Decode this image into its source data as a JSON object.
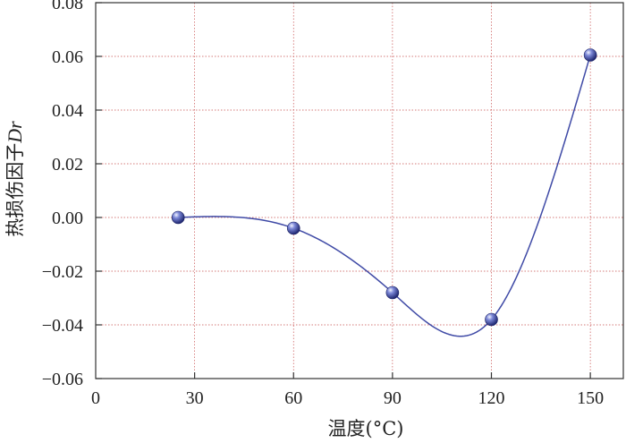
{
  "chart_data": {
    "type": "line",
    "title": "",
    "xlabel": "温度(°C)",
    "ylabel_prefix": "热损伤因子",
    "ylabel_symbol": "Dr",
    "xlim": [
      0,
      160
    ],
    "ylim": [
      -0.06,
      0.08
    ],
    "x_ticks": [
      0,
      30,
      60,
      90,
      120,
      150
    ],
    "x_tick_labels": [
      "0",
      "30",
      "60",
      "90",
      "120",
      "150"
    ],
    "y_ticks": [
      -0.06,
      -0.04,
      -0.02,
      0.0,
      0.02,
      0.04,
      0.06,
      0.08
    ],
    "y_tick_labels": [
      "−0.06",
      "−0.04",
      "−0.02",
      "0.00",
      "0.02",
      "0.04",
      "0.06",
      "0.08"
    ],
    "grid": true,
    "legend": "none",
    "smooth": true,
    "series": [
      {
        "x": [
          25,
          60,
          90,
          120,
          150
        ],
        "values": [
          0.0,
          -0.004,
          -0.028,
          -0.038,
          0.0605
        ]
      }
    ],
    "colors": {
      "line": "#3f4aa6",
      "marker": "#4b58b6",
      "grid": "#c8504f",
      "axis": "#333333"
    }
  }
}
